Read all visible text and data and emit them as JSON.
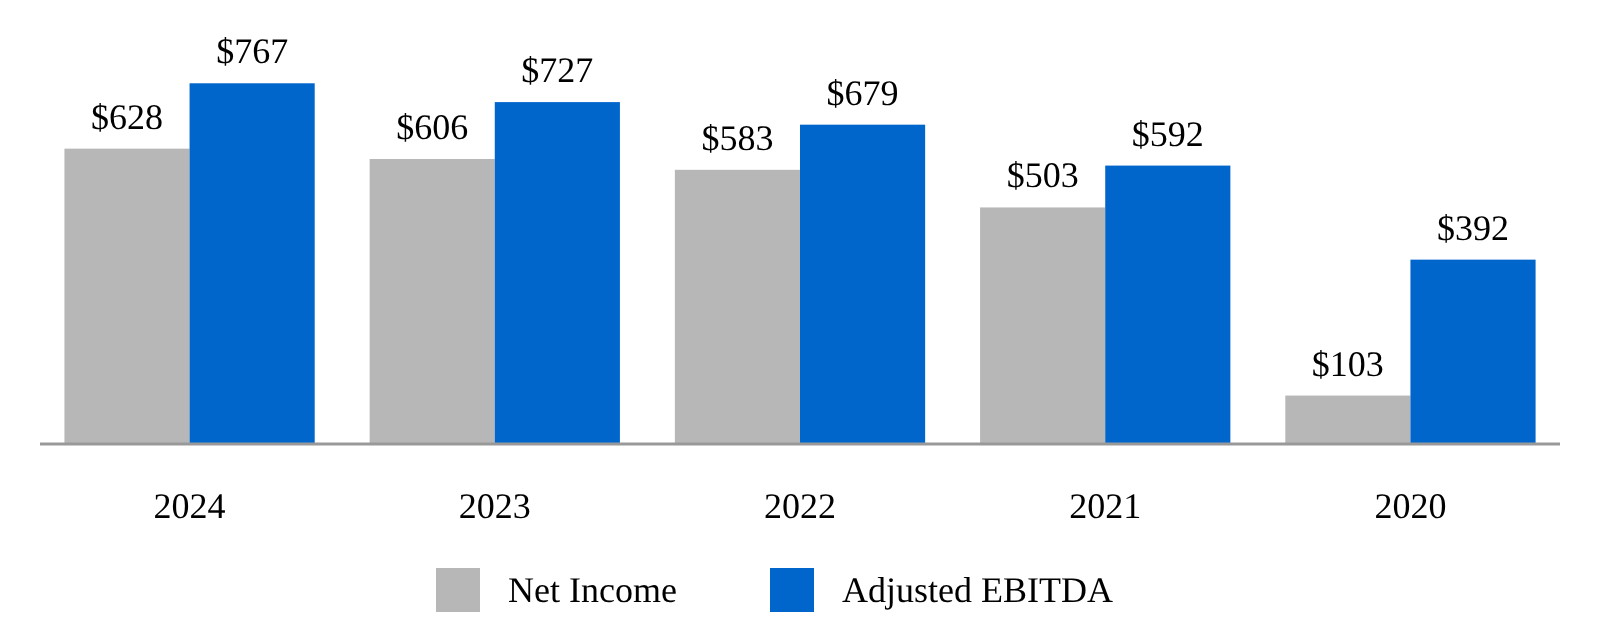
{
  "chart_data": {
    "type": "bar",
    "categories": [
      "2024",
      "2023",
      "2022",
      "2021",
      "2020"
    ],
    "series": [
      {
        "name": "Net Income",
        "color": "#b7b7b7",
        "values": [
          628,
          606,
          583,
          503,
          103
        ],
        "value_labels": [
          "$628",
          "$606",
          "$583",
          "$503",
          "$103"
        ]
      },
      {
        "name": "Adjusted EBITDA",
        "color": "#0066cc",
        "values": [
          767,
          727,
          679,
          592,
          392
        ],
        "value_labels": [
          "$767",
          "$727",
          "$679",
          "$592",
          "$392"
        ]
      }
    ],
    "legend": "bottom"
  }
}
